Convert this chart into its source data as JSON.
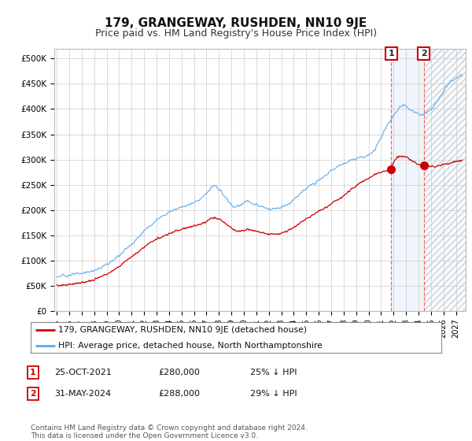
{
  "title": "179, GRANGEWAY, RUSHDEN, NN10 9JE",
  "subtitle": "Price paid vs. HM Land Registry's House Price Index (HPI)",
  "ylabel_ticks": [
    "£0",
    "£50K",
    "£100K",
    "£150K",
    "£200K",
    "£250K",
    "£300K",
    "£350K",
    "£400K",
    "£450K",
    "£500K"
  ],
  "ytick_values": [
    0,
    50000,
    100000,
    150000,
    200000,
    250000,
    300000,
    350000,
    400000,
    450000,
    500000
  ],
  "ylim": [
    0,
    520000
  ],
  "xlim_start": 1994.8,
  "xlim_end": 2027.8,
  "xtick_years": [
    1995,
    1996,
    1997,
    1998,
    1999,
    2000,
    2001,
    2002,
    2003,
    2004,
    2005,
    2006,
    2007,
    2008,
    2009,
    2010,
    2011,
    2012,
    2013,
    2014,
    2015,
    2016,
    2017,
    2018,
    2019,
    2020,
    2021,
    2022,
    2023,
    2024,
    2025,
    2026,
    2027
  ],
  "hpi_color": "#5aaaee",
  "price_color": "#cc0000",
  "sale1_x": 2021.82,
  "sale1_y": 280000,
  "sale2_x": 2024.42,
  "sale2_y": 288000,
  "shade_start": 2021.82,
  "shade_end": 2024.42,
  "hatch_start": 2024.42,
  "legend_label1": "179, GRANGEWAY, RUSHDEN, NN10 9JE (detached house)",
  "legend_label2": "HPI: Average price, detached house, North Northamptonshire",
  "annotation1_date": "25-OCT-2021",
  "annotation1_price": "£280,000",
  "annotation1_pct": "25% ↓ HPI",
  "annotation2_date": "31-MAY-2024",
  "annotation2_price": "£288,000",
  "annotation2_pct": "29% ↓ HPI",
  "footer": "Contains HM Land Registry data © Crown copyright and database right 2024.\nThis data is licensed under the Open Government Licence v3.0.",
  "bg_color": "#ffffff",
  "grid_color": "#cccccc"
}
